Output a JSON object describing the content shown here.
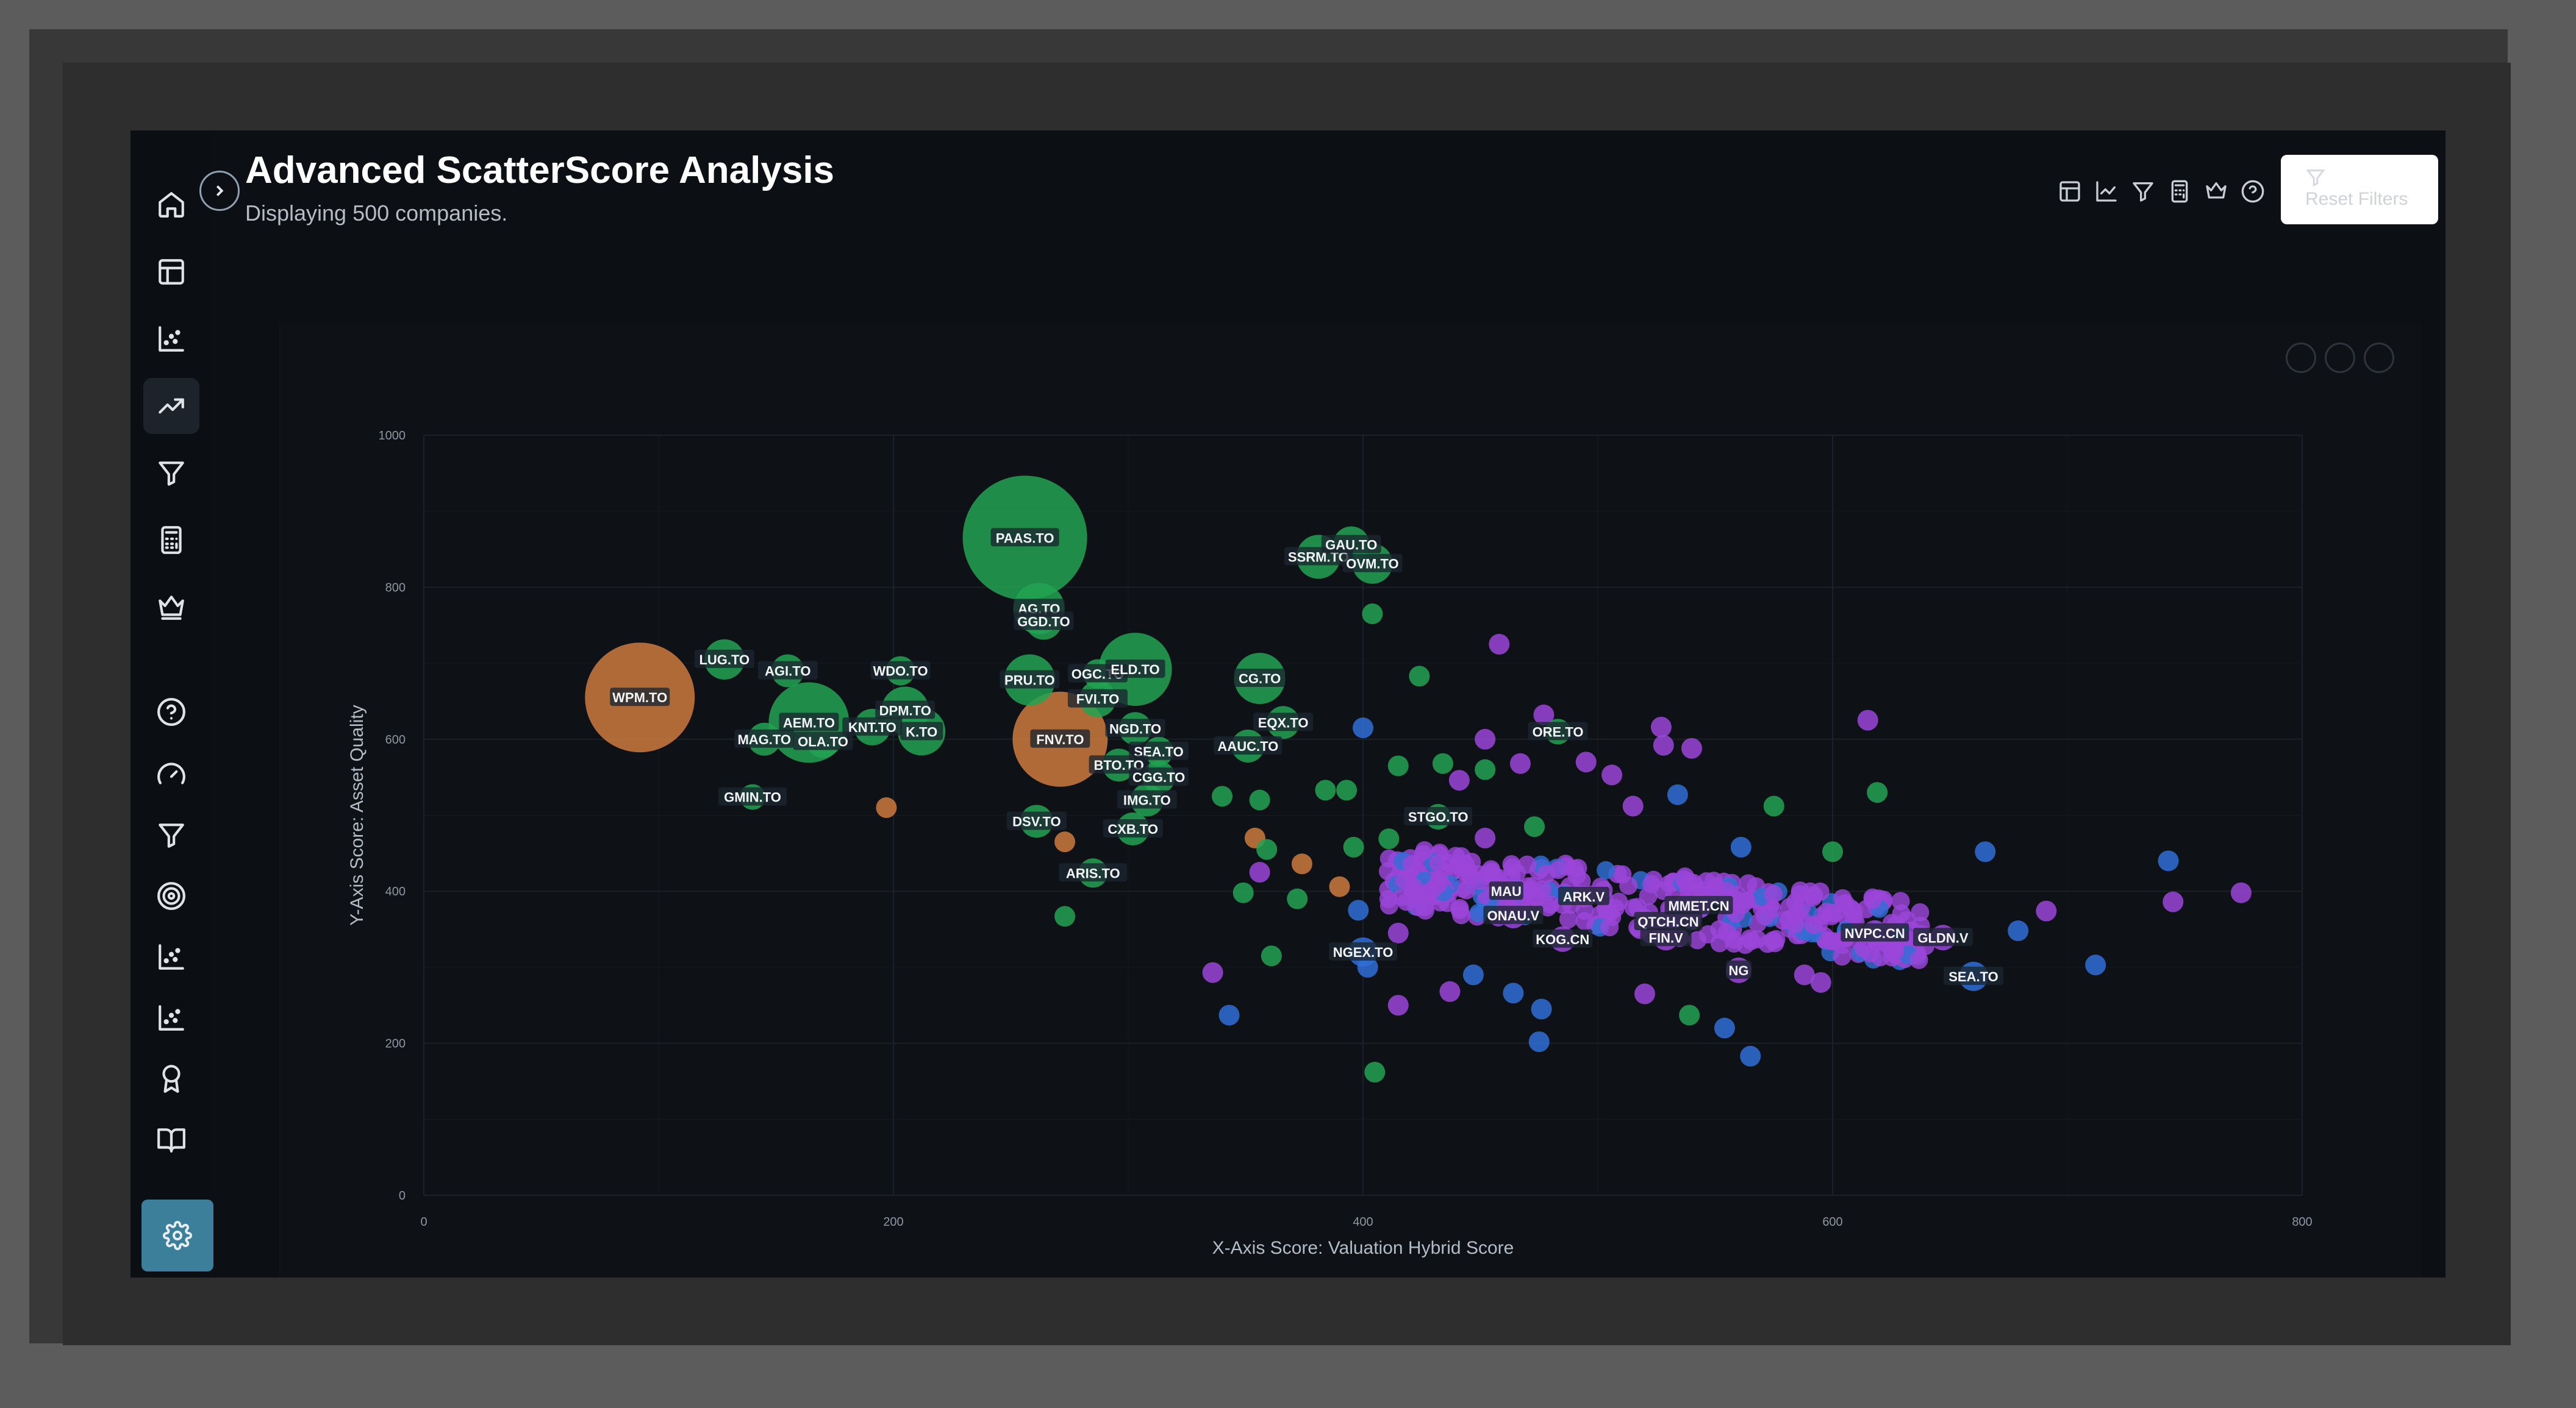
{
  "app": {
    "title": "Advanced ScatterScore Analysis",
    "subtitle": "Displaying 500 companies.",
    "reset_label": "Reset Filters"
  },
  "sidebar": {
    "items": [
      {
        "icon": "home-icon"
      },
      {
        "icon": "table-icon"
      },
      {
        "icon": "scatter-icon"
      },
      {
        "icon": "trending-up-icon",
        "active": true
      },
      {
        "icon": "filter-icon"
      },
      {
        "icon": "calculator-icon"
      },
      {
        "icon": "crown-icon"
      },
      {
        "icon": "help-icon"
      },
      {
        "icon": "gauge-icon"
      },
      {
        "icon": "filter-icon"
      },
      {
        "icon": "target-icon"
      },
      {
        "icon": "scatter-icon"
      },
      {
        "icon": "scatter-icon"
      },
      {
        "icon": "award-icon"
      },
      {
        "icon": "book-icon"
      },
      {
        "icon": "settings-icon"
      }
    ]
  },
  "toolbar": {
    "icons": [
      "table-icon",
      "line-chart-icon",
      "filter-icon",
      "calculator-icon",
      "crown-icon",
      "help-icon"
    ]
  },
  "colors": {
    "green": "#22a352",
    "orange": "#cc7a3e",
    "purple": "#9b45d9",
    "blue": "#2f6fd6",
    "accent_settings": "#3b7f9a"
  },
  "chart_data": {
    "type": "scatter",
    "xlabel": "X-Axis Score: Valuation Hybrid Score",
    "ylabel": "Y-Axis Score: Asset Quality",
    "xlim": [
      0,
      800
    ],
    "ylim": [
      0,
      1000
    ],
    "xticks": [
      "0",
      "200",
      "400",
      "600",
      "800"
    ],
    "yticks": [
      "0",
      "200",
      "400",
      "600",
      "800",
      "1000"
    ],
    "grid": true,
    "labeled_points": [
      {
        "label": "WPM.TO",
        "x": 92,
        "y": 655,
        "size": 30,
        "color": "orange"
      },
      {
        "label": "PAAS.TO",
        "x": 256,
        "y": 865,
        "size": 34,
        "color": "green"
      },
      {
        "label": "AG.TO",
        "x": 262,
        "y": 772,
        "size": 14,
        "color": "green"
      },
      {
        "label": "GGD.TO",
        "x": 264,
        "y": 755,
        "size": 10,
        "color": "green"
      },
      {
        "label": "LUG.TO",
        "x": 128,
        "y": 705,
        "size": 11,
        "color": "green"
      },
      {
        "label": "AGI.TO",
        "x": 155,
        "y": 690,
        "size": 9,
        "color": "green"
      },
      {
        "label": "WDO.TO",
        "x": 203,
        "y": 690,
        "size": 8,
        "color": "green"
      },
      {
        "label": "PRU.TO",
        "x": 258,
        "y": 678,
        "size": 14,
        "color": "green"
      },
      {
        "label": "OGC.TO",
        "x": 287,
        "y": 686,
        "size": 8,
        "color": "green"
      },
      {
        "label": "ELD.TO",
        "x": 303,
        "y": 692,
        "size": 20,
        "color": "green"
      },
      {
        "label": "FVI.TO",
        "x": 287,
        "y": 653,
        "size": 10,
        "color": "green"
      },
      {
        "label": "CG.TO",
        "x": 356,
        "y": 680,
        "size": 14,
        "color": "green"
      },
      {
        "label": "SSRM.TO",
        "x": 381,
        "y": 840,
        "size": 12,
        "color": "green"
      },
      {
        "label": "GAU.TO",
        "x": 395,
        "y": 856,
        "size": 10,
        "color": "green"
      },
      {
        "label": "OVM.TO",
        "x": 404,
        "y": 831,
        "size": 11,
        "color": "green"
      },
      {
        "label": "DPM.TO",
        "x": 205,
        "y": 638,
        "size": 13,
        "color": "green"
      },
      {
        "label": "AEM.TO",
        "x": 164,
        "y": 622,
        "size": 22,
        "color": "green"
      },
      {
        "label": "KNT.TO",
        "x": 191,
        "y": 616,
        "size": 10,
        "color": "green"
      },
      {
        "label": "K.TO",
        "x": 212,
        "y": 610,
        "size": 13,
        "color": "green"
      },
      {
        "label": "MAG.TO",
        "x": 145,
        "y": 600,
        "size": 9,
        "color": "green"
      },
      {
        "label": "OLA.TO",
        "x": 170,
        "y": 597,
        "size": 9,
        "color": "green"
      },
      {
        "label": "FNV.TO",
        "x": 271,
        "y": 600,
        "size": 26,
        "color": "orange"
      },
      {
        "label": "NGD.TO",
        "x": 303,
        "y": 614,
        "size": 9,
        "color": "green"
      },
      {
        "label": "EQX.TO",
        "x": 366,
        "y": 622,
        "size": 9,
        "color": "green"
      },
      {
        "label": "ORE.TO",
        "x": 483,
        "y": 610,
        "size": 7,
        "color": "green"
      },
      {
        "label": "AAUC.TO",
        "x": 351,
        "y": 591,
        "size": 9,
        "color": "green"
      },
      {
        "label": "SEA.TO",
        "x": 313,
        "y": 584,
        "size": 8,
        "color": "green"
      },
      {
        "label": "BTO.TO",
        "x": 296,
        "y": 566,
        "size": 9,
        "color": "green"
      },
      {
        "label": "CGG.TO",
        "x": 313,
        "y": 550,
        "size": 9,
        "color": "green"
      },
      {
        "label": "GMIN.TO",
        "x": 140,
        "y": 524,
        "size": 7,
        "color": "green"
      },
      {
        "label": "IMG.TO",
        "x": 308,
        "y": 520,
        "size": 9,
        "color": "green"
      },
      {
        "label": "DSV.TO",
        "x": 261,
        "y": 492,
        "size": 9,
        "color": "green"
      },
      {
        "label": "CXB.TO",
        "x": 302,
        "y": 482,
        "size": 9,
        "color": "green"
      },
      {
        "label": "STGO.TO",
        "x": 432,
        "y": 498,
        "size": 7,
        "color": "green"
      },
      {
        "label": "ARIS.TO",
        "x": 285,
        "y": 424,
        "size": 8,
        "color": "green"
      },
      {
        "label": "MAU",
        "x": 461,
        "y": 400,
        "size": 7,
        "color": "purple"
      },
      {
        "label": "ARK.V",
        "x": 494,
        "y": 393,
        "size": 6,
        "color": "purple"
      },
      {
        "label": "ONAU.V",
        "x": 464,
        "y": 368,
        "size": 7,
        "color": "purple"
      },
      {
        "label": "MMET.CN",
        "x": 543,
        "y": 381,
        "size": 7,
        "color": "purple"
      },
      {
        "label": "QTCH.CN",
        "x": 530,
        "y": 360,
        "size": 7,
        "color": "purple"
      },
      {
        "label": "KOG.CN",
        "x": 485,
        "y": 337,
        "size": 7,
        "color": "purple"
      },
      {
        "label": "FIN.V",
        "x": 529,
        "y": 339,
        "size": 7,
        "color": "purple"
      },
      {
        "label": "NGEX.TO",
        "x": 400,
        "y": 320,
        "size": 8,
        "color": "blue"
      },
      {
        "label": "NVPC.CN",
        "x": 618,
        "y": 345,
        "size": 7,
        "color": "purple"
      },
      {
        "label": "GLDN.V",
        "x": 647,
        "y": 339,
        "size": 7,
        "color": "purple"
      },
      {
        "label": "NG",
        "x": 560,
        "y": 296,
        "size": 7,
        "color": "purple"
      },
      {
        "label": "SEA.TO",
        "x": 660,
        "y": 288,
        "size": 8,
        "color": "blue"
      }
    ],
    "unlabeled_points": [
      {
        "x": 197,
        "y": 510,
        "c": "orange"
      },
      {
        "x": 273,
        "y": 465,
        "c": "orange"
      },
      {
        "x": 273,
        "y": 367,
        "c": "green"
      },
      {
        "x": 404,
        "y": 765,
        "c": "green"
      },
      {
        "x": 424,
        "y": 683,
        "c": "green"
      },
      {
        "x": 458,
        "y": 725,
        "c": "purple"
      },
      {
        "x": 400,
        "y": 615,
        "c": "blue"
      },
      {
        "x": 415,
        "y": 565,
        "c": "green"
      },
      {
        "x": 434,
        "y": 568,
        "c": "green"
      },
      {
        "x": 452,
        "y": 600,
        "c": "purple"
      },
      {
        "x": 441,
        "y": 546,
        "c": "purple"
      },
      {
        "x": 467,
        "y": 568,
        "c": "purple"
      },
      {
        "x": 452,
        "y": 560,
        "c": "green"
      },
      {
        "x": 393,
        "y": 533,
        "c": "green"
      },
      {
        "x": 384,
        "y": 533,
        "c": "green"
      },
      {
        "x": 356,
        "y": 520,
        "c": "green"
      },
      {
        "x": 340,
        "y": 525,
        "c": "green"
      },
      {
        "x": 354,
        "y": 470,
        "c": "orange"
      },
      {
        "x": 359,
        "y": 455,
        "c": "green"
      },
      {
        "x": 374,
        "y": 436,
        "c": "orange"
      },
      {
        "x": 390,
        "y": 406,
        "c": "orange"
      },
      {
        "x": 372,
        "y": 390,
        "c": "green"
      },
      {
        "x": 349,
        "y": 398,
        "c": "green"
      },
      {
        "x": 356,
        "y": 425,
        "c": "purple"
      },
      {
        "x": 361,
        "y": 315,
        "c": "green"
      },
      {
        "x": 336,
        "y": 293,
        "c": "purple"
      },
      {
        "x": 343,
        "y": 237,
        "c": "blue"
      },
      {
        "x": 405,
        "y": 162,
        "c": "green"
      },
      {
        "x": 396,
        "y": 458,
        "c": "green"
      },
      {
        "x": 411,
        "y": 469,
        "c": "green"
      },
      {
        "x": 473,
        "y": 485,
        "c": "green"
      },
      {
        "x": 477,
        "y": 632,
        "c": "purple"
      },
      {
        "x": 495,
        "y": 570,
        "c": "purple"
      },
      {
        "x": 506,
        "y": 553,
        "c": "purple"
      },
      {
        "x": 515,
        "y": 512,
        "c": "purple"
      },
      {
        "x": 534,
        "y": 527,
        "c": "blue"
      },
      {
        "x": 528,
        "y": 592,
        "c": "purple"
      },
      {
        "x": 527,
        "y": 616,
        "c": "purple"
      },
      {
        "x": 540,
        "y": 588,
        "c": "purple"
      },
      {
        "x": 575,
        "y": 512,
        "c": "green"
      },
      {
        "x": 561,
        "y": 458,
        "c": "blue"
      },
      {
        "x": 615,
        "y": 625,
        "c": "purple"
      },
      {
        "x": 619,
        "y": 530,
        "c": "green"
      },
      {
        "x": 600,
        "y": 452,
        "c": "green"
      },
      {
        "x": 665,
        "y": 452,
        "c": "blue"
      },
      {
        "x": 743,
        "y": 440,
        "c": "blue"
      },
      {
        "x": 745,
        "y": 386,
        "c": "purple"
      },
      {
        "x": 774,
        "y": 398,
        "c": "purple"
      },
      {
        "x": 691,
        "y": 374,
        "c": "purple"
      },
      {
        "x": 679,
        "y": 348,
        "c": "blue"
      },
      {
        "x": 712,
        "y": 303,
        "c": "blue"
      },
      {
        "x": 554,
        "y": 220,
        "c": "blue"
      },
      {
        "x": 565,
        "y": 183,
        "c": "blue"
      },
      {
        "x": 539,
        "y": 237,
        "c": "green"
      },
      {
        "x": 475,
        "y": 202,
        "c": "blue"
      },
      {
        "x": 464,
        "y": 266,
        "c": "blue"
      },
      {
        "x": 415,
        "y": 250,
        "c": "purple"
      },
      {
        "x": 437,
        "y": 268,
        "c": "purple"
      },
      {
        "x": 476,
        "y": 245,
        "c": "blue"
      },
      {
        "x": 466,
        "y": 402,
        "c": "purple"
      },
      {
        "x": 398,
        "y": 375,
        "c": "blue"
      },
      {
        "x": 452,
        "y": 470,
        "c": "purple"
      },
      {
        "x": 402,
        "y": 300,
        "c": "blue"
      },
      {
        "x": 415,
        "y": 345,
        "c": "purple"
      },
      {
        "x": 447,
        "y": 290,
        "c": "blue"
      },
      {
        "x": 520,
        "y": 265,
        "c": "purple"
      },
      {
        "x": 588,
        "y": 290,
        "c": "purple"
      },
      {
        "x": 595,
        "y": 280,
        "c": "purple"
      },
      {
        "x": 626,
        "y": 322,
        "c": "purple"
      }
    ],
    "cluster": {
      "x_range": [
        410,
        640
      ],
      "y_range": [
        300,
        440
      ],
      "count": 360,
      "colors": [
        "purple",
        "blue"
      ]
    }
  }
}
